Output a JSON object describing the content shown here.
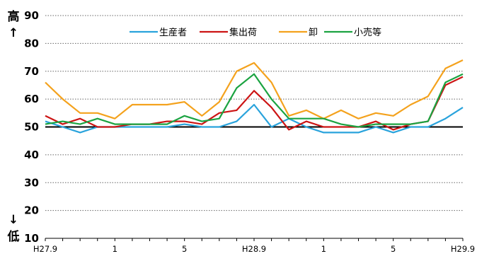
{
  "chart_data": {
    "type": "line",
    "title": "",
    "y_high_label": "高",
    "y_low_label": "低",
    "y_up_arrow": "↑",
    "y_down_arrow": "↓",
    "xlabel": "",
    "ylabel": "",
    "ylim": [
      10,
      90
    ],
    "yticks": [
      10,
      20,
      30,
      40,
      50,
      60,
      70,
      80,
      90
    ],
    "reference_line": 50,
    "grid": true,
    "legend_position": "top",
    "xtick_labels": [
      {
        "index": 0,
        "label": "H27.9"
      },
      {
        "index": 4,
        "label": "1"
      },
      {
        "index": 8,
        "label": "5"
      },
      {
        "index": 12,
        "label": "H28.9"
      },
      {
        "index": 16,
        "label": "1"
      },
      {
        "index": 20,
        "label": "5"
      },
      {
        "index": 24,
        "label": "H29.9"
      }
    ],
    "series": [
      {
        "name": "生産者",
        "color": "#29a3dc",
        "values": [
          52,
          50,
          48,
          50,
          50,
          50,
          50,
          50,
          51,
          50,
          50,
          52,
          58,
          50,
          53,
          50,
          48,
          48,
          48,
          50,
          48,
          50,
          50,
          53,
          57
        ]
      },
      {
        "name": "集出荷",
        "color": "#cc1414",
        "values": [
          54,
          51,
          53,
          50,
          50,
          51,
          51,
          52,
          52,
          51,
          55,
          56,
          63,
          57,
          49,
          52,
          50,
          50,
          50,
          52,
          49,
          51,
          52,
          65,
          68
        ]
      },
      {
        "name": "卸",
        "color": "#f4a21d",
        "values": [
          66,
          60,
          55,
          55,
          53,
          58,
          58,
          58,
          59,
          54,
          59,
          70,
          73,
          66,
          54,
          56,
          53,
          56,
          53,
          55,
          54,
          58,
          61,
          71,
          74
        ]
      },
      {
        "name": "小売等",
        "color": "#1ba341",
        "values": [
          51,
          52,
          51,
          53,
          51,
          51,
          51,
          51,
          54,
          52,
          53,
          64,
          69,
          60,
          53,
          53,
          53,
          51,
          50,
          51,
          51,
          51,
          52,
          66,
          69
        ]
      }
    ]
  }
}
